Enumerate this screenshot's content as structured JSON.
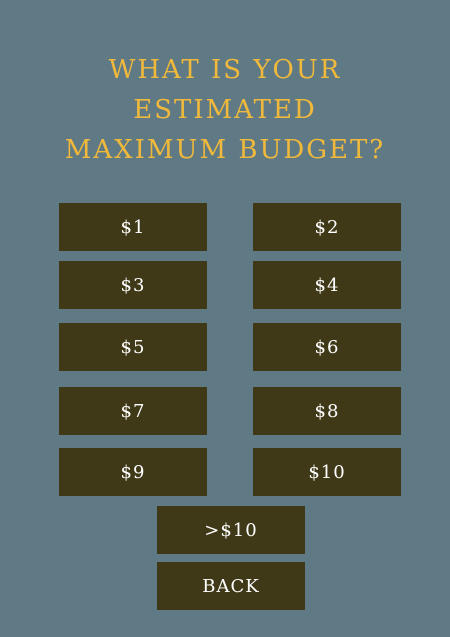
{
  "title_lines": [
    "WHAT IS YOUR",
    "ESTIMATED",
    "MAXIMUM BUDGET?"
  ],
  "options": [
    "$1",
    "$2",
    "$3",
    "$4",
    "$5",
    "$6",
    "$7",
    "$8",
    "$9",
    "$10",
    ">$10"
  ],
  "back_label": "BACK",
  "colors": {
    "background": "#5f7a84",
    "title": "#f0b93c",
    "button": "#3f3918",
    "button_text": "#ffffff"
  }
}
